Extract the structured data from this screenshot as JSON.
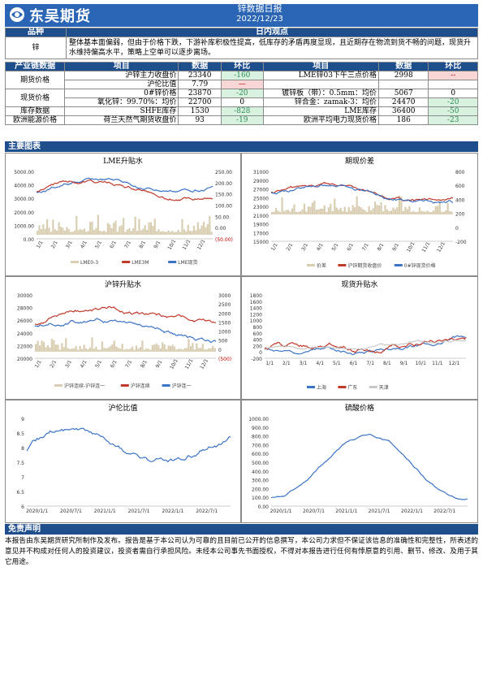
{
  "header": {
    "brand": "东吴期货",
    "report_title": "锌数据日报",
    "date": "2022/12/23",
    "colors": {
      "brand_blue": "#2a66b5",
      "section_blue": "#1f4e8c",
      "up_red": "#c00000",
      "down_green": "#2e8b57"
    }
  },
  "view": {
    "col_variety": "品种",
    "col_view": "日内观点",
    "variety": "锌",
    "text": "整体基本面偏弱，但由于价格下跌，下游补库积极性提高，低库存的矛盾再度显现，且近期存在物流到货不畅的问题，现货升水维持偏高水平，策略上空单可以逐步离场。"
  },
  "chain": {
    "headers": [
      "产业链数据",
      "项目",
      "数据",
      "环比",
      "项目",
      "数据",
      "环比"
    ],
    "rows": [
      {
        "group": "期货价格",
        "item1": "沪锌主力收盘价",
        "v1": "23340",
        "c1": "-160",
        "c1_dir": "neg",
        "item2": "LME锌03下午三点价格",
        "v2": "2998",
        "c2": "--",
        "c2_dir": "pos"
      },
      {
        "group": "",
        "item1": "沪伦比值",
        "v1": "7.79",
        "c1": "—",
        "c1_dir": "pos",
        "item2": "",
        "v2": "",
        "c2": "",
        "c2_dir": ""
      },
      {
        "group": "现货价格",
        "item1": "0#锌价格",
        "v1": "23870",
        "c1": "-20",
        "c1_dir": "neg",
        "item2": "镀锌板（带）：0.5mm：均价",
        "v2": "5067",
        "c2": "0",
        "c2_dir": ""
      },
      {
        "group": "",
        "item1": "氧化锌：99.70%：均价",
        "v1": "22700",
        "c1": "0",
        "c1_dir": "",
        "item2": "锌合金：zamak-3：均价",
        "v2": "24470",
        "c2": "-20",
        "c2_dir": "neg"
      },
      {
        "group": "库存数据",
        "item1": "SHFE库存",
        "v1": "1530",
        "c1": "-828",
        "c1_dir": "neg",
        "item2": "LME库存",
        "v2": "36400",
        "c2": "-50",
        "c2_dir": "neg"
      },
      {
        "group": "欧洲能源价格",
        "item1": "荷兰天然气期货收盘价",
        "v1": "93",
        "c1": "-19",
        "c1_dir": "neg",
        "item2": "欧洲平均电力现货价格",
        "v2": "186",
        "c2": "-23",
        "c2_dir": "neg"
      }
    ]
  },
  "charts_section": "主要图表",
  "disclaimer": {
    "title": "免责声明",
    "text": "本报告由东吴期货研究所制作及发布。报告是基于本公司认为可靠的且目前已公开的信息撰写，本公司力求但不保证该信息的准确性和完整性，所表述的意见并不构成对任何人的投资建议，投资者需自行承担风险。未经本公司事先书面授权，不得对本报告进行任何有悖原意的引用、删节、修改、及用于其它用途。"
  },
  "chart_data": [
    {
      "type": "line",
      "title": "LME升贴水",
      "left_ticks": [
        "5000.00",
        "4000.00",
        "3000.00",
        "2000.00",
        "1000.00",
        "0.00"
      ],
      "right_ticks": [
        "250.00",
        "200.00",
        "150.00",
        "100.00",
        "50.00",
        "0.00",
        "(50.00)"
      ],
      "x_ticks": [
        "1/1",
        "2/1",
        "3/1",
        "4/1",
        "5/1",
        "6/1",
        "7/1",
        "8/1",
        "9/1",
        "10/1",
        "11/1",
        "12/1"
      ],
      "legend": [
        "LME0-3",
        "LME3M",
        "LME现货"
      ],
      "series_colors": [
        "#d9ceb2",
        "#c0392b",
        "#3b73c5"
      ]
    },
    {
      "type": "line",
      "title": "期现价差",
      "left_ticks": [
        "31000",
        "29000",
        "27000",
        "25000",
        "23000",
        "21000",
        "19000",
        "17000",
        "15000"
      ],
      "right_ticks": [
        "800",
        "600",
        "400",
        "200",
        "0",
        "-200"
      ],
      "x_ticks": [
        "1/1",
        "2/1",
        "3/1",
        "4/1",
        "5/1",
        "6/1",
        "7/1",
        "8/1",
        "9/1",
        "10/1",
        "11/1",
        "12/1"
      ],
      "legend": [
        "价差",
        "沪锌期货收盘价",
        "0#锌现货价格"
      ],
      "series_colors": [
        "#d9ceb2",
        "#c0392b",
        "#3b73c5"
      ]
    },
    {
      "type": "line",
      "title": "沪锌升贴水",
      "left_ticks": [
        "30000",
        "28000",
        "26000",
        "24000",
        "22000",
        "20000"
      ],
      "right_ticks": [
        "3000",
        "2500",
        "2000",
        "1500",
        "1000",
        "500",
        "0",
        "(500)"
      ],
      "x_ticks": [
        "1/1",
        "2/1",
        "3/1",
        "4/1",
        "5/1",
        "6/1",
        "7/1",
        "8/1",
        "9/1",
        "10/1",
        "11/1",
        "12/1"
      ],
      "legend": [
        "沪锌连续-沪锌连一",
        "沪锌连续",
        "沪锌连一"
      ],
      "series_colors": [
        "#d9ceb2",
        "#c0392b",
        "#3b73c5"
      ]
    },
    {
      "type": "line",
      "title": "现货升贴水",
      "left_ticks": [
        "1800",
        "1600",
        "1400",
        "1200",
        "1000",
        "800",
        "600",
        "400",
        "200",
        "0",
        "-200"
      ],
      "x_ticks": [
        "1/1",
        "2/1",
        "3/1",
        "4/1",
        "5/1",
        "6/1",
        "7/1",
        "8/1",
        "9/1",
        "10/1",
        "11/1",
        "12/1"
      ],
      "legend": [
        "上海",
        "广东",
        "天津"
      ],
      "series_colors": [
        "#3b73c5",
        "#c0392b",
        "#c8c8c8"
      ]
    },
    {
      "type": "line",
      "title": "沪伦比值",
      "left_ticks": [
        "9",
        "8.5",
        "8",
        "7.5",
        "7",
        "6.5",
        "6"
      ],
      "x_ticks": [
        "2020/1/1",
        "2020/7/1",
        "2021/1/1",
        "2021/7/1",
        "2022/1/1",
        "2022/7/1"
      ],
      "series_colors": [
        "#3b73c5"
      ]
    },
    {
      "type": "line",
      "title": "硫酸价格",
      "left_ticks": [
        "1000.00",
        "900.00",
        "800.00",
        "700.00",
        "600.00",
        "500.00",
        "400.00",
        "300.00",
        "200.00",
        "100.00",
        "0.00"
      ],
      "x_ticks": [
        "2020/1/1",
        "2020/7/1",
        "2021/1/1",
        "2021/7/1",
        "2022/1/1",
        "2022/7/1"
      ],
      "series_colors": [
        "#3b73c5"
      ]
    }
  ]
}
